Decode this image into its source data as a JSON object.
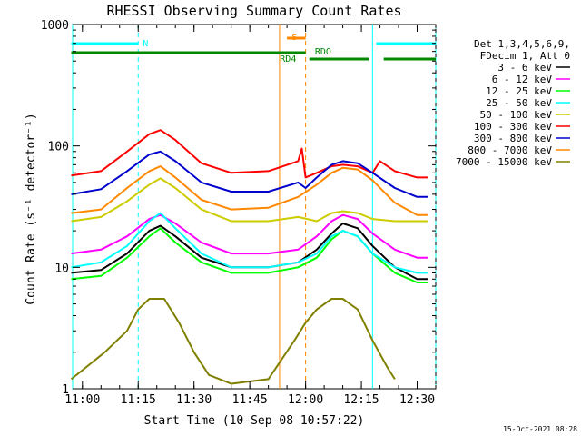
{
  "chart_data": {
    "type": "line",
    "title": "RHESSI Observing Summary Count Rates",
    "ylabel": "Count Rate (s⁻¹ detector⁻¹)",
    "xlabel": "Start Time (10-Sep-08 10:57:22)",
    "y_scale": "log",
    "ylim": [
      1,
      1000
    ],
    "xlim": [
      "10:57:22",
      "12:35:00"
    ],
    "x_ticks": [
      "11:00",
      "11:15",
      "11:30",
      "11:45",
      "12:00",
      "12:15",
      "12:30"
    ],
    "y_ticks": [
      "1",
      "10",
      "100",
      "1000"
    ],
    "legend": {
      "position": "top-right",
      "header": [
        "Det 1,3,4,5,6,9,",
        "FDecim 1, Att 0"
      ]
    },
    "series": [
      {
        "name": "3 - 6 keV",
        "color": "#000000",
        "points": [
          [
            "10:57",
            9
          ],
          [
            "11:05",
            9.5
          ],
          [
            "11:12",
            13
          ],
          [
            "11:18",
            20
          ],
          [
            "11:21",
            22
          ],
          [
            "11:25",
            18
          ],
          [
            "11:32",
            12
          ],
          [
            "11:40",
            10
          ],
          [
            "11:50",
            10
          ],
          [
            "11:58",
            11
          ],
          [
            "12:03",
            14
          ],
          [
            "12:07",
            19
          ],
          [
            "12:10",
            23
          ],
          [
            "12:14",
            21
          ],
          [
            "12:18",
            15
          ],
          [
            "12:24",
            10
          ],
          [
            "12:30",
            8
          ],
          [
            "12:33",
            8
          ]
        ]
      },
      {
        "name": "6 - 12 keV",
        "color": "#ff00ff",
        "points": [
          [
            "10:57",
            13
          ],
          [
            "11:05",
            14
          ],
          [
            "11:12",
            18
          ],
          [
            "11:18",
            25
          ],
          [
            "11:21",
            27
          ],
          [
            "11:25",
            23
          ],
          [
            "11:32",
            16
          ],
          [
            "11:40",
            13
          ],
          [
            "11:50",
            13
          ],
          [
            "11:58",
            14
          ],
          [
            "12:03",
            18
          ],
          [
            "12:07",
            24
          ],
          [
            "12:10",
            27
          ],
          [
            "12:14",
            25
          ],
          [
            "12:18",
            19
          ],
          [
            "12:24",
            14
          ],
          [
            "12:30",
            12
          ],
          [
            "12:33",
            12
          ]
        ]
      },
      {
        "name": "12 - 25 keV",
        "color": "#00ff00",
        "points": [
          [
            "10:57",
            8
          ],
          [
            "11:05",
            8.5
          ],
          [
            "11:12",
            12
          ],
          [
            "11:18",
            18
          ],
          [
            "11:21",
            21
          ],
          [
            "11:25",
            16
          ],
          [
            "11:32",
            11
          ],
          [
            "11:40",
            9
          ],
          [
            "11:50",
            9
          ],
          [
            "11:58",
            10
          ],
          [
            "12:03",
            12
          ],
          [
            "12:07",
            17
          ],
          [
            "12:10",
            20
          ],
          [
            "12:14",
            18
          ],
          [
            "12:18",
            13
          ],
          [
            "12:24",
            9
          ],
          [
            "12:30",
            7.5
          ],
          [
            "12:33",
            7.5
          ]
        ]
      },
      {
        "name": "25 - 50 keV",
        "color": "#00ffff",
        "points": [
          [
            "10:57",
            10
          ],
          [
            "11:05",
            11
          ],
          [
            "11:12",
            15
          ],
          [
            "11:18",
            24
          ],
          [
            "11:21",
            28
          ],
          [
            "11:25",
            21
          ],
          [
            "11:32",
            13
          ],
          [
            "11:40",
            10
          ],
          [
            "11:50",
            10
          ],
          [
            "11:58",
            11
          ],
          [
            "12:03",
            13
          ],
          [
            "12:07",
            18
          ],
          [
            "12:10",
            20
          ],
          [
            "12:14",
            18
          ],
          [
            "12:18",
            13
          ],
          [
            "12:24",
            10
          ],
          [
            "12:30",
            9
          ],
          [
            "12:33",
            9
          ]
        ]
      },
      {
        "name": "50 - 100 keV",
        "color": "#cccc00",
        "points": [
          [
            "10:57",
            24
          ],
          [
            "11:05",
            26
          ],
          [
            "11:12",
            35
          ],
          [
            "11:18",
            48
          ],
          [
            "11:21",
            54
          ],
          [
            "11:25",
            45
          ],
          [
            "11:32",
            30
          ],
          [
            "11:40",
            24
          ],
          [
            "11:50",
            24
          ],
          [
            "11:58",
            26
          ],
          [
            "12:03",
            24
          ],
          [
            "12:07",
            28
          ],
          [
            "12:10",
            29
          ],
          [
            "12:14",
            28
          ],
          [
            "12:18",
            25
          ],
          [
            "12:24",
            24
          ],
          [
            "12:30",
            24
          ],
          [
            "12:33",
            24
          ]
        ]
      },
      {
        "name": "100 - 300 keV",
        "color": "#ff0000",
        "points": [
          [
            "10:57",
            57
          ],
          [
            "11:05",
            62
          ],
          [
            "11:12",
            90
          ],
          [
            "11:18",
            125
          ],
          [
            "11:21",
            135
          ],
          [
            "11:25",
            112
          ],
          [
            "11:32",
            72
          ],
          [
            "11:40",
            60
          ],
          [
            "11:50",
            62
          ],
          [
            "11:58",
            75
          ],
          [
            "11:59",
            95
          ],
          [
            "12:00",
            55
          ],
          [
            "12:03",
            60
          ],
          [
            "12:07",
            68
          ],
          [
            "12:10",
            70
          ],
          [
            "12:14",
            68
          ],
          [
            "12:18",
            60
          ],
          [
            "12:20",
            75
          ],
          [
            "12:24",
            62
          ],
          [
            "12:30",
            55
          ],
          [
            "12:33",
            55
          ]
        ]
      },
      {
        "name": "300 - 800 keV",
        "color": "#0000cc",
        "points": [
          [
            "10:57",
            40
          ],
          [
            "11:05",
            44
          ],
          [
            "11:12",
            62
          ],
          [
            "11:18",
            85
          ],
          [
            "11:21",
            90
          ],
          [
            "11:25",
            75
          ],
          [
            "11:32",
            50
          ],
          [
            "11:40",
            42
          ],
          [
            "11:50",
            42
          ],
          [
            "11:58",
            50
          ],
          [
            "12:00",
            45
          ],
          [
            "12:03",
            55
          ],
          [
            "12:07",
            70
          ],
          [
            "12:10",
            75
          ],
          [
            "12:14",
            72
          ],
          [
            "12:18",
            60
          ],
          [
            "12:24",
            45
          ],
          [
            "12:30",
            38
          ],
          [
            "12:33",
            38
          ]
        ]
      },
      {
        "name": "800 - 7000 keV",
        "color": "#ff8800",
        "points": [
          [
            "10:57",
            28
          ],
          [
            "11:05",
            30
          ],
          [
            "11:12",
            45
          ],
          [
            "11:18",
            62
          ],
          [
            "11:21",
            68
          ],
          [
            "11:25",
            55
          ],
          [
            "11:32",
            36
          ],
          [
            "11:40",
            30
          ],
          [
            "11:50",
            31
          ],
          [
            "11:58",
            38
          ],
          [
            "12:03",
            48
          ],
          [
            "12:07",
            60
          ],
          [
            "12:10",
            66
          ],
          [
            "12:14",
            64
          ],
          [
            "12:18",
            52
          ],
          [
            "12:24",
            34
          ],
          [
            "12:30",
            27
          ],
          [
            "12:33",
            27
          ]
        ]
      },
      {
        "name": "7000 - 15000 keV",
        "color": "#808000",
        "points": [
          [
            "10:57",
            1.2
          ],
          [
            "11:06",
            2
          ],
          [
            "11:12",
            3
          ],
          [
            "11:15",
            4.5
          ],
          [
            "11:18",
            5.5
          ],
          [
            "11:22",
            5.5
          ],
          [
            "11:26",
            3.5
          ],
          [
            "11:30",
            2
          ],
          [
            "11:34",
            1.3
          ],
          [
            "11:40",
            1.1
          ],
          [
            "11:50",
            1.2
          ],
          [
            "11:57",
            2.5
          ],
          [
            "12:00",
            3.5
          ],
          [
            "12:03",
            4.5
          ],
          [
            "12:07",
            5.5
          ],
          [
            "12:10",
            5.5
          ],
          [
            "12:14",
            4.5
          ],
          [
            "12:18",
            2.5
          ],
          [
            "12:22",
            1.5
          ],
          [
            "12:24",
            1.2
          ]
        ]
      }
    ],
    "annotations": [
      {
        "label": "N",
        "color": "#00ffff",
        "x": "11:15"
      },
      {
        "label": "S",
        "color": "#ff8800",
        "x": "11:58"
      },
      {
        "label": "RD4",
        "color": "#008800",
        "x": "11:57"
      },
      {
        "label": "RDO",
        "color": "#008800",
        "x": "12:03"
      }
    ],
    "vertical_lines": [
      {
        "x": "10:57:22",
        "color": "#00ffff",
        "style": "solid"
      },
      {
        "x": "11:15",
        "color": "#00ffff",
        "style": "dashed"
      },
      {
        "x": "11:53",
        "color": "#ff8800",
        "style": "solid"
      },
      {
        "x": "12:00",
        "color": "#ff8800",
        "style": "dashed"
      },
      {
        "x": "12:18",
        "color": "#00ffff",
        "style": "solid"
      },
      {
        "x": "12:35",
        "color": "#00ffff",
        "style": "dashed"
      }
    ],
    "status_bars": [
      {
        "name": "night",
        "color": "#00ffff",
        "segments": [
          [
            "10:57",
            "11:15"
          ],
          [
            "12:19",
            "12:35"
          ]
        ]
      },
      {
        "name": "saa",
        "color": "#ff8800",
        "segments": [
          [
            "11:55",
            "12:00"
          ]
        ]
      },
      {
        "name": "rd4",
        "color": "#008800",
        "segments": [
          [
            "10:57",
            "12:00"
          ]
        ]
      },
      {
        "name": "rdo",
        "color": "#008800",
        "segments": [
          [
            "12:01",
            "12:17"
          ],
          [
            "12:21",
            "12:35"
          ]
        ]
      }
    ]
  },
  "footer": {
    "timestamp": "15-Oct-2021 08:28"
  }
}
